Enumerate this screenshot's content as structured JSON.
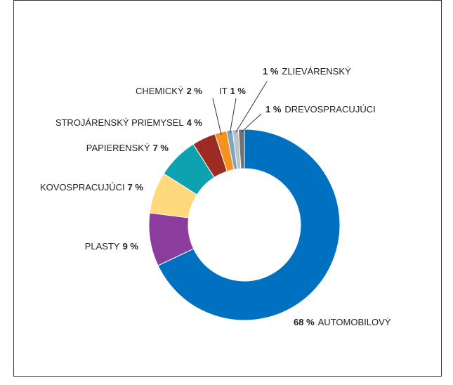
{
  "chart_data": {
    "type": "donut",
    "categories": [
      "AUTOMOBILOVÝ",
      "PLASTY",
      "KOVOSPRACUJÚCI",
      "PAPIERENSKÝ",
      "STROJÁRENSKÝ PRIEMYSEL",
      "CHEMICKÝ",
      "IT",
      "ZLIEVÁRENSKÝ",
      "DREVOSPRACUJÚCI"
    ],
    "values": [
      68,
      9,
      7,
      7,
      4,
      2,
      1,
      1,
      1
    ],
    "value_labels": [
      "68 %",
      "9 %",
      "7 %",
      "7 %",
      "4 %",
      "2 %",
      "1 %",
      "1 %",
      "1 %"
    ],
    "colors": [
      "#0070c0",
      "#8b3c9c",
      "#ffd97c",
      "#0ea2b0",
      "#9c2b23",
      "#f49320",
      "#7ea6c2",
      "#bcc3c8",
      "#6d7277"
    ]
  }
}
